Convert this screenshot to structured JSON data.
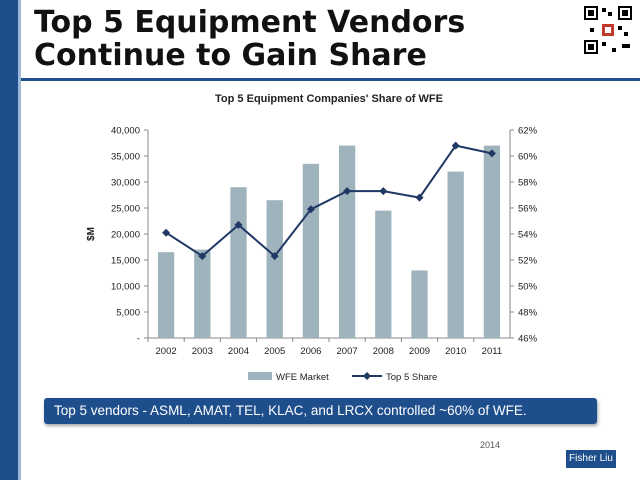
{
  "slide": {
    "title": "Top 5 Equipment Vendors Continue to Gain Share",
    "banner": "Top 5 vendors - ASML, AMAT, TEL, KLAC, and LRCX controlled ~60% of WFE.",
    "footer": "2014",
    "author": "Fisher Liu"
  },
  "colors": {
    "bar": "#9fb3bd",
    "line": "#1f3864",
    "accent": "#1f4e8c"
  },
  "chart_data": {
    "type": "bar",
    "title": "Top 5 Equipment Companies' Share of WFE",
    "ylabel": "$M",
    "categories": [
      "2002",
      "2003",
      "2004",
      "2005",
      "2006",
      "2007",
      "2008",
      "2009",
      "2010",
      "2011"
    ],
    "series": [
      {
        "name": "WFE Market",
        "type": "bar",
        "axis": "left",
        "values": [
          16500,
          17000,
          29000,
          26500,
          33500,
          37000,
          24500,
          13000,
          32000,
          37000
        ]
      },
      {
        "name": "Top 5 Share",
        "type": "line",
        "axis": "right",
        "values": [
          54.1,
          52.3,
          54.7,
          52.3,
          55.9,
          57.3,
          57.3,
          56.8,
          60.8,
          60.2
        ]
      }
    ],
    "ylim": [
      0,
      40000
    ],
    "ylim_right": [
      46,
      62
    ],
    "y_ticks": [
      "-",
      "5,000",
      "10,000",
      "15,000",
      "20,000",
      "25,000",
      "30,000",
      "35,000",
      "40,000"
    ],
    "y_right_ticks": [
      "46%",
      "48%",
      "50%",
      "52%",
      "54%",
      "56%",
      "58%",
      "60%",
      "62%"
    ],
    "legend": "bottom"
  }
}
